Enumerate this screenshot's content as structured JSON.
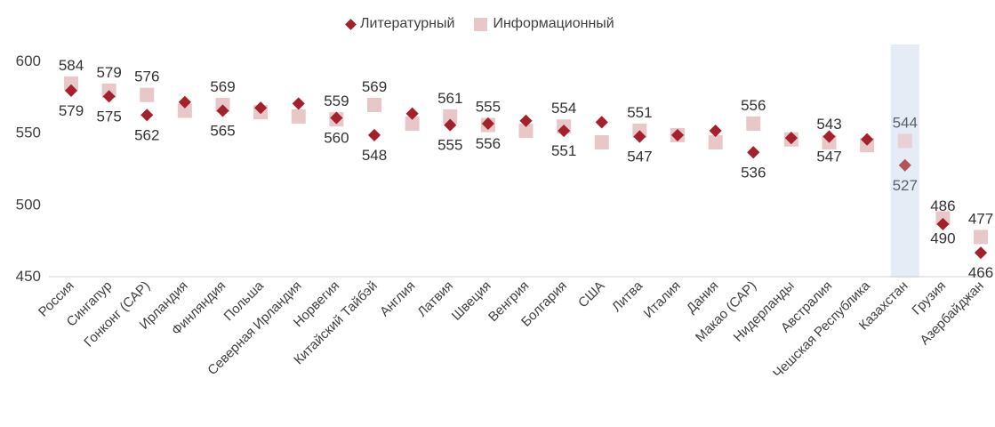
{
  "chart_data": {
    "type": "scatter",
    "title": "",
    "ylim": [
      450,
      600
    ],
    "yticks": [
      "600",
      "550",
      "500",
      "450"
    ],
    "highlight": "Казахстан",
    "colors": {
      "lit": "#a4202a",
      "info": "#e8c7c9",
      "band": "#e6ecf6"
    },
    "categories": [
      "Россия",
      "Сингапур",
      "Гонконг (САР)",
      "Ирландия",
      "Финляндия",
      "Польша",
      "Северная Ирландия",
      "Норвегия",
      "Китайский Тайбэй",
      "Англия",
      "Латвия",
      "Швеция",
      "Венгрия",
      "Болгария",
      "США",
      "Литва",
      "Италия",
      "Дания",
      "Макао (САР)",
      "Нидерланды",
      "Австралия",
      "Чешская Республика",
      "Казахстан",
      "Грузия",
      "Азербайджан"
    ],
    "series": [
      {
        "name": "Литературный",
        "marker": "diamond",
        "values": [
          579,
          575,
          562,
          571,
          565,
          567,
          570,
          560,
          548,
          563,
          555,
          556,
          558,
          551,
          557,
          547,
          548,
          551,
          536,
          546,
          547,
          545,
          527,
          486,
          466
        ],
        "labels": [
          "579",
          "575",
          "562",
          null,
          "565",
          null,
          null,
          "560",
          "548",
          null,
          "555",
          "556",
          null,
          "551",
          null,
          "547",
          null,
          null,
          "536",
          null,
          "547",
          null,
          "527",
          "486",
          "466"
        ],
        "label_pos": [
          "below",
          "below",
          "below",
          null,
          "below",
          null,
          null,
          "below",
          "below",
          null,
          "below",
          "below",
          null,
          "below",
          null,
          "below",
          null,
          null,
          "below",
          null,
          "below",
          null,
          "below",
          "above",
          "below"
        ]
      },
      {
        "name": "Информационный",
        "marker": "square",
        "values": [
          584,
          579,
          576,
          565,
          569,
          564,
          561,
          559,
          569,
          556,
          561,
          555,
          551,
          554,
          543,
          551,
          548,
          543,
          556,
          545,
          543,
          541,
          544,
          490,
          477
        ],
        "labels": [
          "584",
          "579",
          "576",
          null,
          "569",
          null,
          null,
          "559",
          "569",
          null,
          "561",
          "555",
          null,
          "554",
          null,
          "551",
          null,
          null,
          "556",
          null,
          "543",
          null,
          "544",
          "490",
          "477"
        ],
        "label_pos": [
          "above",
          "above",
          "above",
          null,
          "above",
          null,
          null,
          "above",
          "above",
          null,
          "above",
          "above",
          null,
          "above",
          null,
          "above",
          null,
          null,
          "above",
          null,
          "above",
          null,
          "above",
          "below",
          "above"
        ]
      }
    ]
  }
}
